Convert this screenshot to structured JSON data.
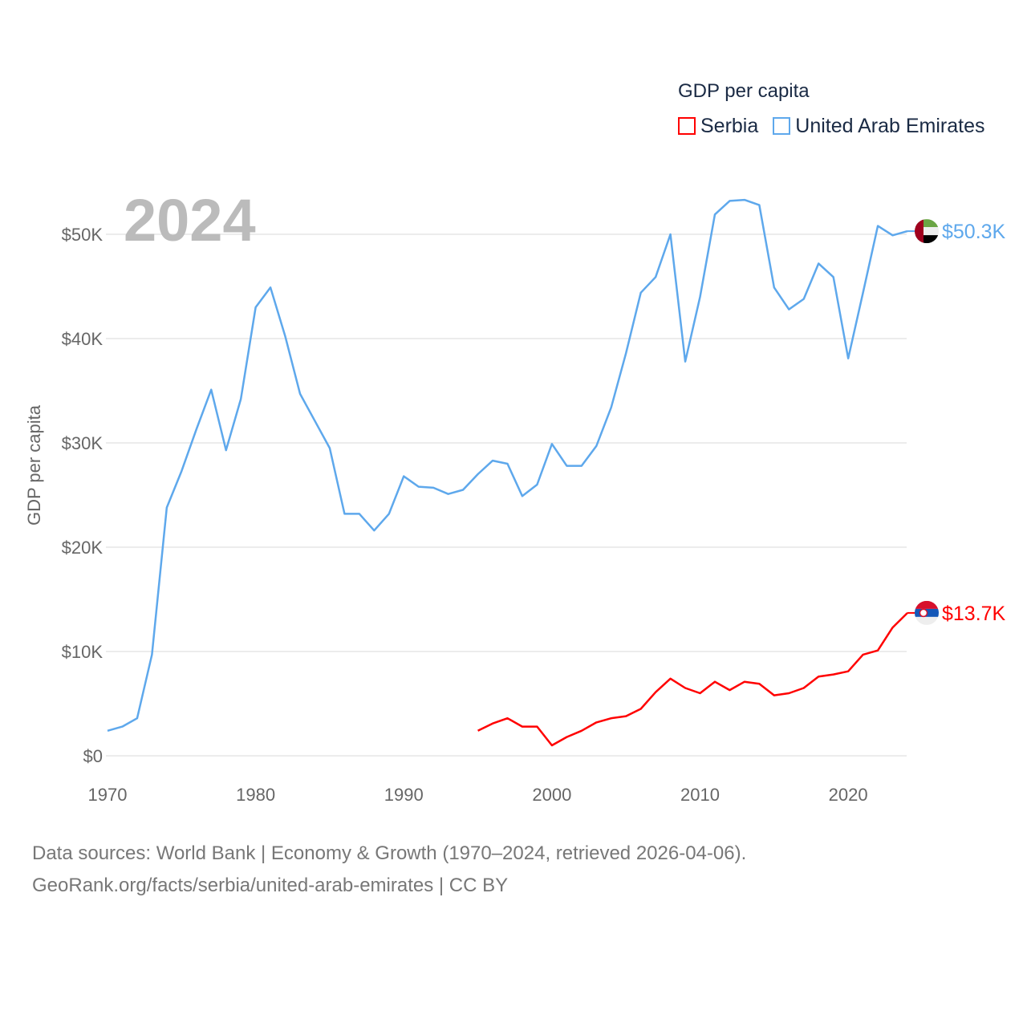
{
  "chart_data": {
    "type": "line",
    "title": "",
    "year_label": "2024",
    "xlabel": "",
    "ylabel": "GDP per capita",
    "xlim": [
      1970,
      2024
    ],
    "ylim": [
      0,
      50000
    ],
    "x_ticks": [
      "1970",
      "1980",
      "1990",
      "2000",
      "2010",
      "2020"
    ],
    "x_tick_values": [
      1970,
      1980,
      1990,
      2000,
      2010,
      2020
    ],
    "y_ticks": [
      "$0",
      "$10K",
      "$20K",
      "$30K",
      "$40K",
      "$50K"
    ],
    "y_tick_values": [
      0,
      10000,
      20000,
      30000,
      40000,
      50000
    ],
    "grid": true,
    "legend_title": "GDP per capita",
    "legend_position": "top-right",
    "series": [
      {
        "name": "Serbia",
        "color": "#ff0000",
        "end_label": "$13.7K",
        "start_year": 1995,
        "values": [
          2.4,
          3.1,
          3.6,
          2.8,
          2.8,
          1.0,
          1.8,
          2.4,
          3.2,
          3.6,
          3.8,
          4.5,
          6.1,
          7.4,
          6.5,
          6.0,
          7.1,
          6.3,
          7.1,
          6.9,
          5.8,
          6.0,
          6.5,
          7.6,
          7.8,
          8.1,
          9.7,
          10.1,
          12.3,
          13.7
        ]
      },
      {
        "name": "United Arab Emirates",
        "color": "#5ea8ec",
        "end_label": "$50.3K",
        "start_year": 1970,
        "values": [
          2.4,
          2.8,
          3.6,
          9.7,
          23.8,
          27.3,
          31.3,
          35.1,
          29.3,
          34.2,
          43.0,
          44.9,
          40.2,
          34.7,
          32.1,
          29.5,
          23.2,
          23.2,
          21.6,
          23.2,
          26.8,
          25.8,
          25.7,
          25.1,
          25.5,
          27.0,
          28.3,
          28.0,
          24.9,
          26.0,
          29.9,
          27.8,
          27.8,
          29.7,
          33.4,
          38.6,
          44.4,
          45.9,
          50.0,
          37.8,
          44.0,
          51.9,
          53.2,
          53.3,
          52.8,
          44.9,
          42.8,
          43.8,
          47.2,
          45.9,
          38.1,
          44.4,
          50.8,
          49.9,
          50.3
        ]
      }
    ],
    "value_unit": "thousand USD"
  },
  "footer": {
    "line1": "Data sources: World Bank | Economy & Growth (1970–2024, retrieved 2026-04-06).",
    "line2": "GeoRank.org/facts/serbia/united-arab-emirates | CC BY"
  }
}
